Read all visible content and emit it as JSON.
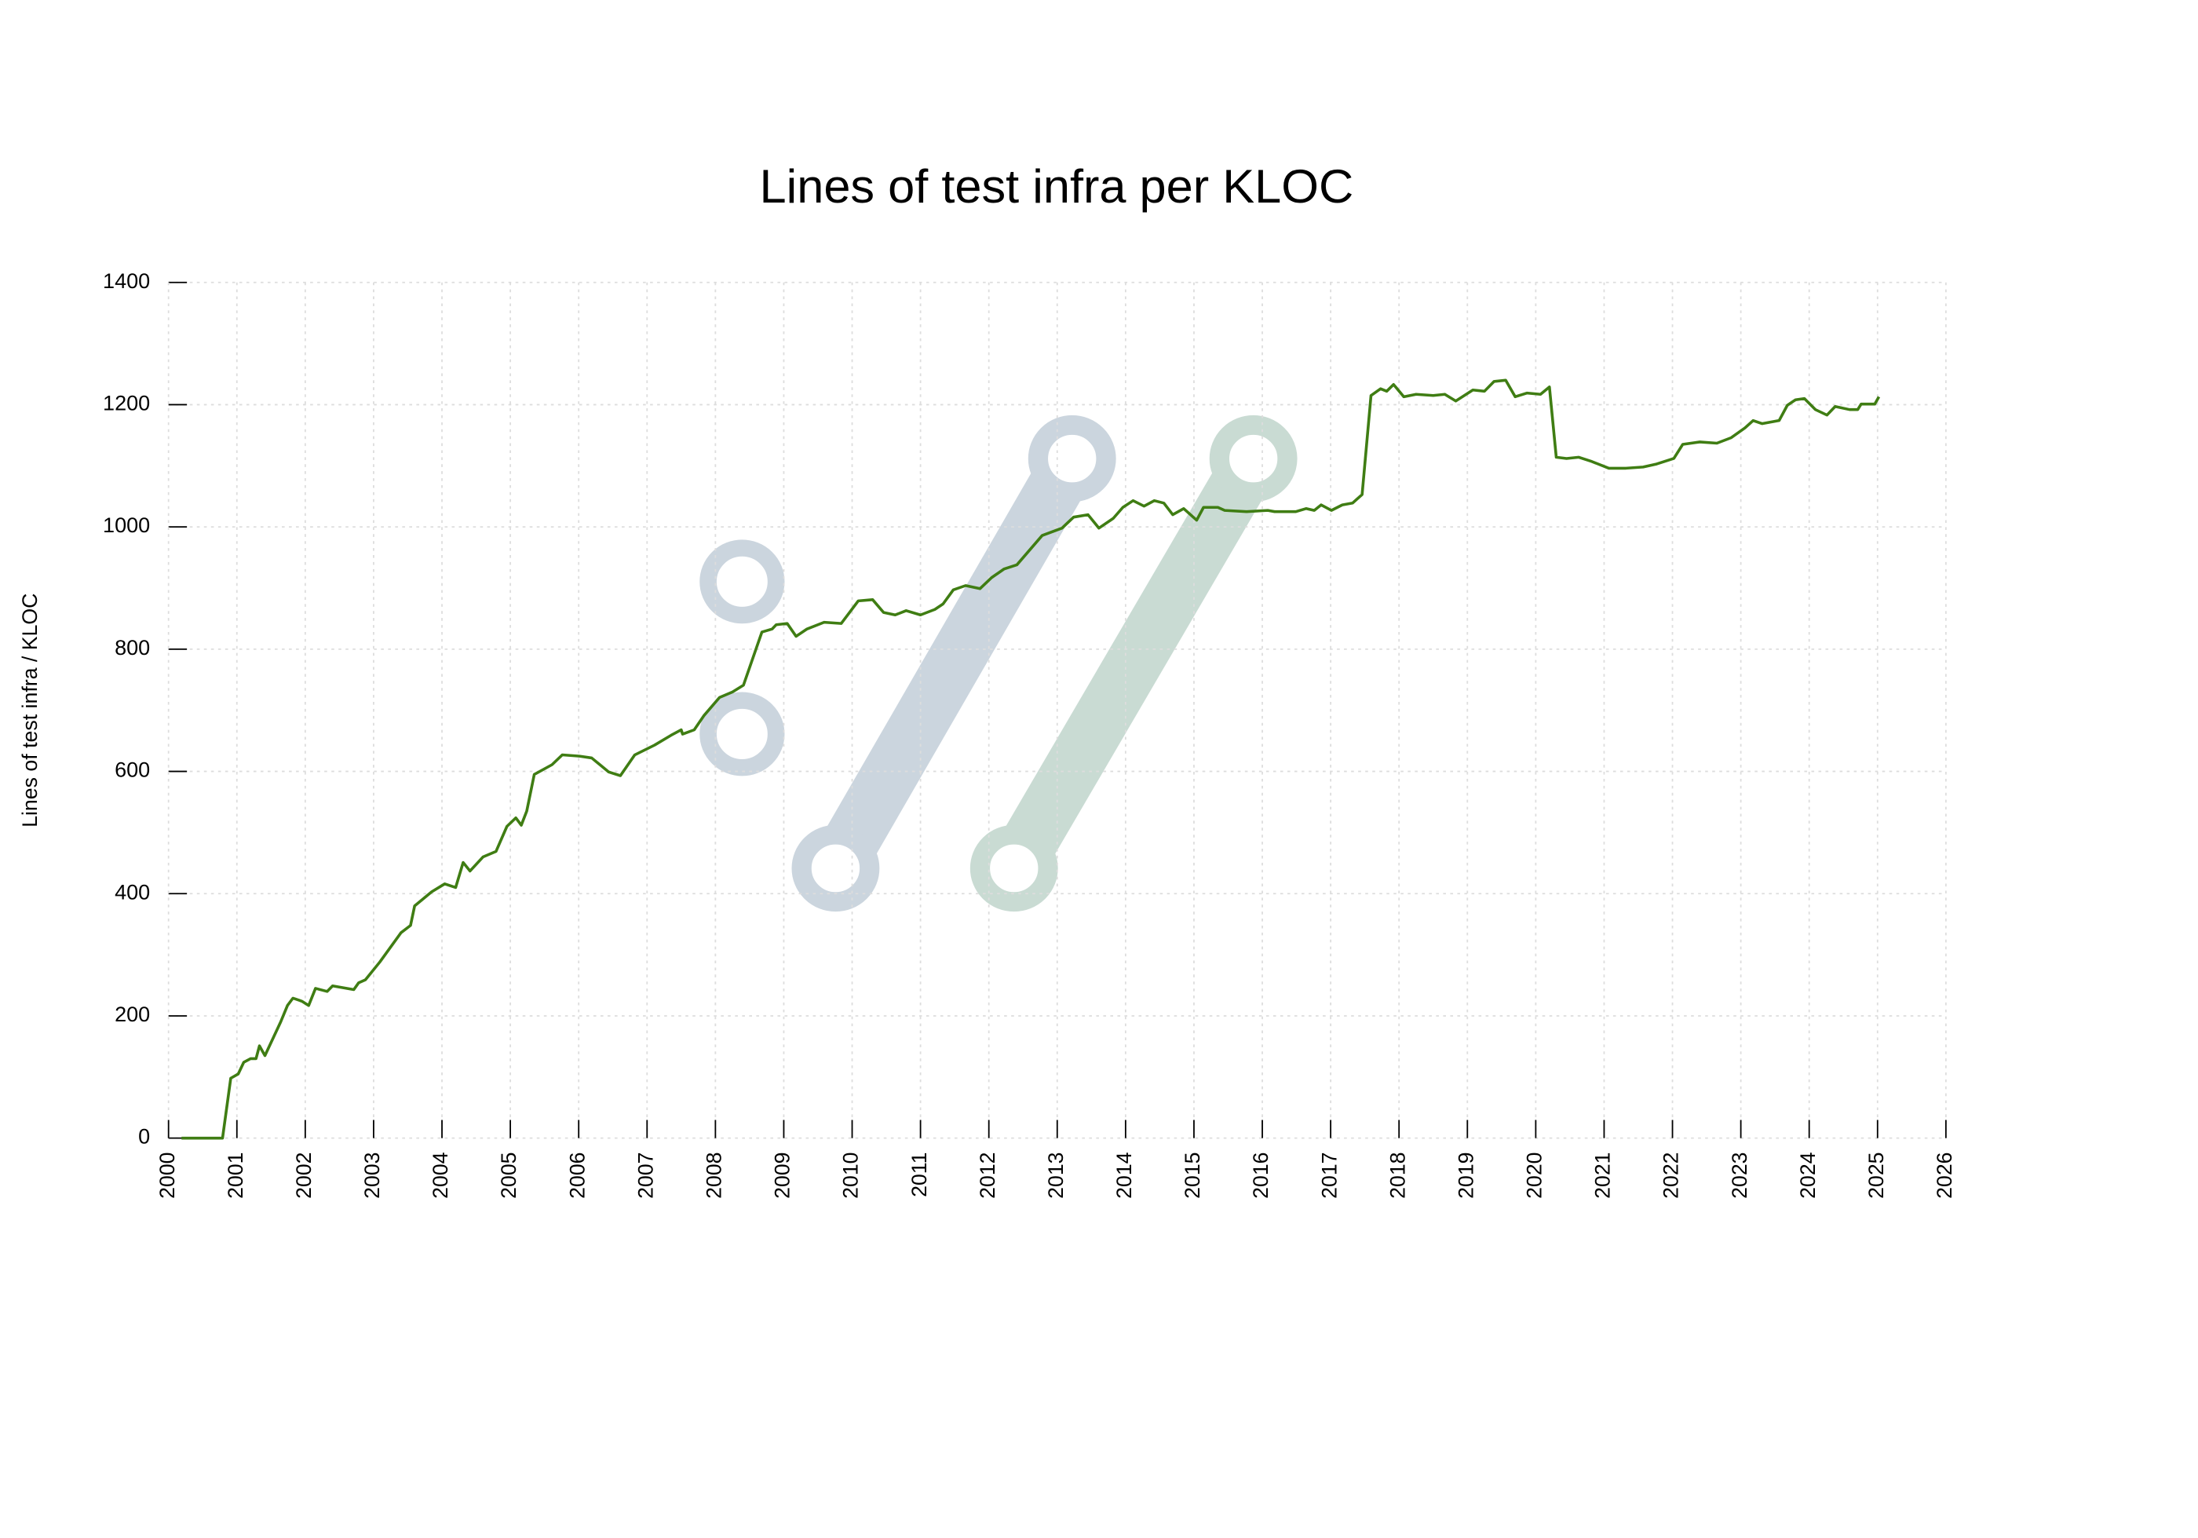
{
  "chart_data": {
    "type": "line",
    "title": "Lines of test infra per KLOC",
    "y_label": "Lines of test infra / KLOC",
    "color": "#3f7d13",
    "grid": true,
    "xlim": [
      2000,
      2026
    ],
    "xticks": [
      2000,
      2001,
      2002,
      2003,
      2004,
      2005,
      2006,
      2007,
      2008,
      2009,
      2010,
      2011,
      2012,
      2013,
      2014,
      2015,
      2016,
      2017,
      2018,
      2019,
      2020,
      2021,
      2022,
      2023,
      2024,
      2025,
      2026
    ],
    "ylim": [
      0,
      1400
    ],
    "yticks": [
      0,
      200,
      400,
      600,
      800,
      1000,
      1200,
      1400
    ],
    "x": [
      2000.19,
      2000.79,
      2000.91,
      2001.02,
      2001.1,
      2001.2,
      2001.28,
      2001.33,
      2001.41,
      2001.64,
      2001.74,
      2001.82,
      2001.95,
      2002.05,
      2002.15,
      2002.32,
      2002.4,
      2002.71,
      2002.78,
      2002.88,
      2003.09,
      2003.4,
      2003.54,
      2003.6,
      2003.85,
      2004.04,
      2004.2,
      2004.31,
      2004.41,
      2004.6,
      2004.79,
      2004.95,
      2005.08,
      2005.16,
      2005.24,
      2005.35,
      2005.61,
      2005.76,
      2006.01,
      2006.19,
      2006.44,
      2006.61,
      2006.82,
      2007.11,
      2007.35,
      2007.5,
      2007.52,
      2007.69,
      2007.83,
      2008.06,
      2008.25,
      2008.41,
      2008.68,
      2008.83,
      2008.89,
      2009.05,
      2009.18,
      2009.34,
      2009.59,
      2009.84,
      2010.09,
      2010.3,
      2010.46,
      2010.63,
      2010.79,
      2011.0,
      2011.21,
      2011.33,
      2011.48,
      2011.66,
      2011.87,
      2012.04,
      2012.22,
      2012.41,
      2012.78,
      2013.07,
      2013.24,
      2013.45,
      2013.61,
      2013.82,
      2013.96,
      2014.11,
      2014.27,
      2014.42,
      2014.56,
      2014.69,
      2014.85,
      2015.04,
      2015.14,
      2015.35,
      2015.45,
      2015.77,
      2016.08,
      2016.18,
      2016.49,
      2016.64,
      2016.76,
      2016.86,
      2017.01,
      2017.17,
      2017.32,
      2017.46,
      2017.59,
      2017.73,
      2017.82,
      2017.92,
      2018.07,
      2018.25,
      2018.5,
      2018.67,
      2018.83,
      2019.08,
      2019.25,
      2019.39,
      2019.56,
      2019.7,
      2019.87,
      2020.07,
      2020.2,
      2020.3,
      2020.45,
      2020.63,
      2020.82,
      2021.07,
      2021.32,
      2021.57,
      2021.77,
      2022.02,
      2022.15,
      2022.4,
      2022.65,
      2022.86,
      2023.06,
      2023.18,
      2023.31,
      2023.56,
      2023.68,
      2023.8,
      2023.93,
      2024.09,
      2024.26,
      2024.38,
      2024.59,
      2024.71,
      2024.76,
      2024.96,
      2025.02
    ],
    "values": [
      0,
      0,
      98,
      105,
      124,
      130,
      130,
      151,
      135,
      190,
      217,
      229,
      224,
      217,
      245,
      240,
      249,
      243,
      254,
      259,
      288,
      336,
      348,
      380,
      403,
      416,
      410,
      451,
      437,
      460,
      469,
      510,
      524,
      512,
      535,
      595,
      611,
      627,
      625,
      622,
      599,
      593,
      627,
      643,
      659,
      668,
      661,
      668,
      691,
      721,
      730,
      741,
      828,
      833,
      840,
      842,
      821,
      833,
      844,
      842,
      879,
      881,
      860,
      856,
      863,
      856,
      865,
      874,
      897,
      904,
      899,
      917,
      931,
      938,
      986,
      998,
      1016,
      1020,
      998,
      1014,
      1032,
      1043,
      1034,
      1043,
      1039,
      1020,
      1030,
      1011,
      1032,
      1032,
      1027,
      1025,
      1027,
      1025,
      1025,
      1030,
      1027,
      1036,
      1027,
      1036,
      1039,
      1053,
      1215,
      1226,
      1222,
      1233,
      1213,
      1217,
      1215,
      1217,
      1206,
      1224,
      1222,
      1238,
      1240,
      1213,
      1219,
      1217,
      1229,
      1114,
      1112,
      1114,
      1107,
      1096,
      1096,
      1098,
      1103,
      1112,
      1135,
      1139,
      1137,
      1146,
      1162,
      1174,
      1169,
      1174,
      1199,
      1208,
      1210,
      1192,
      1183,
      1197,
      1192,
      1192,
      1201,
      1201,
      1213
    ]
  }
}
